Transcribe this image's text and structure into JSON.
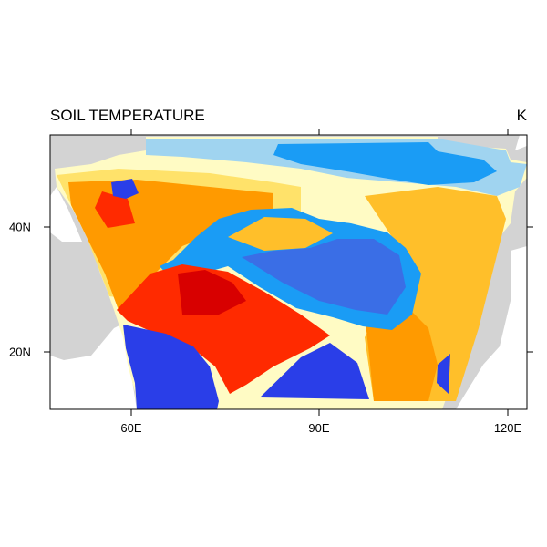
{
  "plot": {
    "title": "SOIL TEMPERATURE",
    "units": "K",
    "x_tick_labels": [
      "60E",
      "90E",
      "120E"
    ],
    "y_tick_labels": [
      "40N",
      "20N"
    ],
    "lon_range": [
      47,
      123
    ],
    "lat_range": [
      11,
      55
    ],
    "palette": {
      "land": "#d3d3d3",
      "ocean": "#ffffff",
      "deep_blue": "#2a3ee8",
      "blue": "#3a6ee6",
      "mid_blue": "#1a9cf5",
      "light_blue": "#a0d4f0",
      "pale_yellow": "#fffbc4",
      "yellow": "#ffe26a",
      "gold": "#ffbf2a",
      "orange": "#ff9a00",
      "dark_orange": "#ff6a00",
      "red": "#ff2a00",
      "dark_red": "#d80000"
    }
  }
}
